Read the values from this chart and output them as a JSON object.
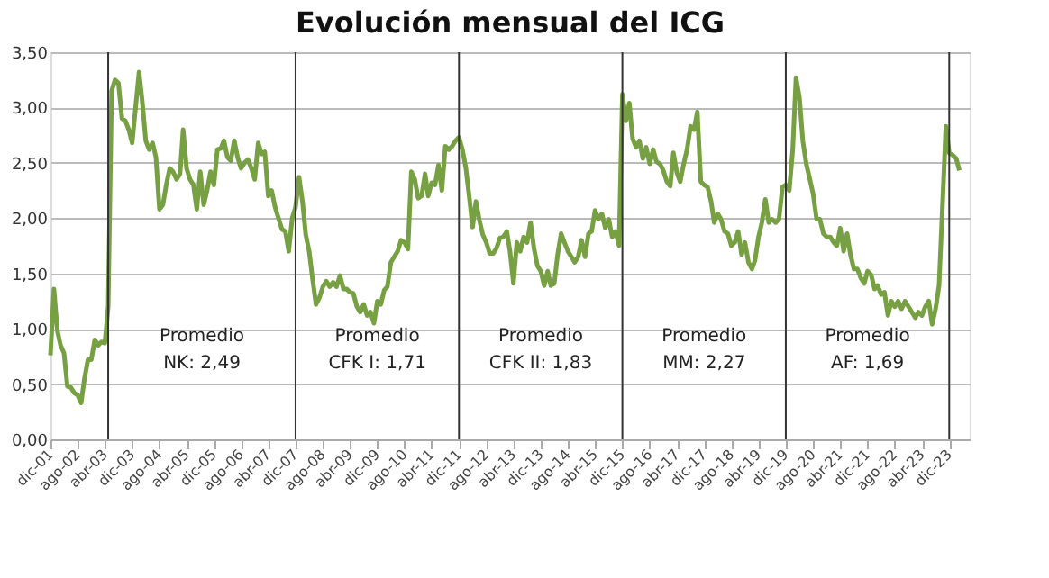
{
  "chart_data": {
    "type": "line",
    "title": "Evolución mensual del ICG",
    "x": [
      "2001-12",
      "2002-01",
      "2002-02",
      "2002-03",
      "2002-04",
      "2002-05",
      "2002-06",
      "2002-07",
      "2002-08",
      "2002-09",
      "2002-10",
      "2002-11",
      "2002-12",
      "2003-01",
      "2003-02",
      "2003-03",
      "2003-04",
      "2003-05",
      "2003-06",
      "2003-07",
      "2003-08",
      "2003-09",
      "2003-10",
      "2003-11",
      "2003-12",
      "2004-01",
      "2004-02",
      "2004-03",
      "2004-04",
      "2004-05",
      "2004-06",
      "2004-07",
      "2004-08",
      "2004-09",
      "2004-10",
      "2004-11",
      "2004-12",
      "2005-01",
      "2005-02",
      "2005-03",
      "2005-04",
      "2005-05",
      "2005-06",
      "2005-07",
      "2005-08",
      "2005-09",
      "2005-10",
      "2005-11",
      "2005-12",
      "2006-01",
      "2006-02",
      "2006-03",
      "2006-04",
      "2006-05",
      "2006-06",
      "2006-07",
      "2006-08",
      "2006-09",
      "2006-10",
      "2006-11",
      "2006-12",
      "2007-01",
      "2007-02",
      "2007-03",
      "2007-04",
      "2007-05",
      "2007-06",
      "2007-07",
      "2007-08",
      "2007-09",
      "2007-10",
      "2007-11",
      "2007-12",
      "2008-01",
      "2008-02",
      "2008-03",
      "2008-04",
      "2008-05",
      "2008-06",
      "2008-07",
      "2008-08",
      "2008-09",
      "2008-10",
      "2008-11",
      "2008-12",
      "2009-01",
      "2009-02",
      "2009-03",
      "2009-04",
      "2009-05",
      "2009-06",
      "2009-07",
      "2009-08",
      "2009-09",
      "2009-10",
      "2009-11",
      "2009-12",
      "2010-01",
      "2010-02",
      "2010-03",
      "2010-04",
      "2010-05",
      "2010-06",
      "2010-07",
      "2010-08",
      "2010-09",
      "2010-10",
      "2010-11",
      "2010-12",
      "2011-01",
      "2011-02",
      "2011-03",
      "2011-04",
      "2011-05",
      "2011-06",
      "2011-07",
      "2011-08",
      "2011-09",
      "2011-10",
      "2011-11",
      "2011-12",
      "2012-01",
      "2012-02",
      "2012-03",
      "2012-04",
      "2012-05",
      "2012-06",
      "2012-07",
      "2012-08",
      "2012-09",
      "2012-10",
      "2012-11",
      "2012-12",
      "2013-01",
      "2013-02",
      "2013-03",
      "2013-04",
      "2013-05",
      "2013-06",
      "2013-07",
      "2013-08",
      "2013-09",
      "2013-10",
      "2013-11",
      "2013-12",
      "2014-01",
      "2014-02",
      "2014-03",
      "2014-04",
      "2014-05",
      "2014-06",
      "2014-07",
      "2014-08",
      "2014-09",
      "2014-10",
      "2014-11",
      "2014-12",
      "2015-01",
      "2015-02",
      "2015-03",
      "2015-04",
      "2015-05",
      "2015-06",
      "2015-07",
      "2015-08",
      "2015-09",
      "2015-10",
      "2015-11",
      "2015-12",
      "2016-01",
      "2016-02",
      "2016-03",
      "2016-04",
      "2016-05",
      "2016-06",
      "2016-07",
      "2016-08",
      "2016-09",
      "2016-10",
      "2016-11",
      "2016-12",
      "2017-01",
      "2017-02",
      "2017-03",
      "2017-04",
      "2017-05",
      "2017-06",
      "2017-07",
      "2017-08",
      "2017-09",
      "2017-10",
      "2017-11",
      "2017-12",
      "2018-01",
      "2018-02",
      "2018-03",
      "2018-04",
      "2018-05",
      "2018-06",
      "2018-07",
      "2018-08",
      "2018-09",
      "2018-10",
      "2018-11",
      "2018-12",
      "2019-01",
      "2019-02",
      "2019-03",
      "2019-04",
      "2019-05",
      "2019-06",
      "2019-07",
      "2019-08",
      "2019-09",
      "2019-10",
      "2019-11",
      "2019-12",
      "2020-01",
      "2020-02",
      "2020-03",
      "2020-04",
      "2020-05",
      "2020-06",
      "2020-07",
      "2020-08",
      "2020-09",
      "2020-10",
      "2020-11",
      "2020-12",
      "2021-01",
      "2021-02",
      "2021-03",
      "2021-04",
      "2021-05",
      "2021-06",
      "2021-07",
      "2021-08",
      "2021-09",
      "2021-10",
      "2021-11",
      "2021-12",
      "2022-01",
      "2022-02",
      "2022-03",
      "2022-04",
      "2022-05",
      "2022-06",
      "2022-07",
      "2022-08",
      "2022-09",
      "2022-10",
      "2022-11",
      "2022-12",
      "2023-01",
      "2023-02",
      "2023-03",
      "2023-04",
      "2023-05",
      "2023-06",
      "2023-07",
      "2023-08",
      "2023-09",
      "2023-10",
      "2023-11",
      "2023-12",
      "2024-01",
      "2024-02",
      "2024-03"
    ],
    "series": [
      {
        "color": "#77a043",
        "values": [
          0.76,
          1.36,
          0.98,
          0.85,
          0.78,
          0.48,
          0.47,
          0.42,
          0.4,
          0.33,
          0.55,
          0.72,
          0.72,
          0.9,
          0.85,
          0.88,
          0.87,
          1.2,
          3.15,
          3.25,
          3.22,
          2.9,
          2.88,
          2.8,
          2.68,
          3.0,
          3.32,
          3.05,
          2.7,
          2.62,
          2.68,
          2.55,
          2.08,
          2.12,
          2.3,
          2.45,
          2.42,
          2.35,
          2.4,
          2.8,
          2.45,
          2.35,
          2.3,
          2.08,
          2.42,
          2.12,
          2.25,
          2.42,
          2.3,
          2.62,
          2.63,
          2.7,
          2.55,
          2.52,
          2.7,
          2.55,
          2.45,
          2.5,
          2.53,
          2.45,
          2.35,
          2.68,
          2.58,
          2.6,
          2.2,
          2.25,
          2.1,
          2.0,
          1.9,
          1.88,
          1.7,
          2.0,
          2.1,
          2.37,
          2.15,
          1.85,
          1.7,
          1.45,
          1.22,
          1.28,
          1.38,
          1.43,
          1.38,
          1.42,
          1.38,
          1.48,
          1.36,
          1.36,
          1.33,
          1.32,
          1.2,
          1.15,
          1.22,
          1.12,
          1.15,
          1.05,
          1.25,
          1.22,
          1.35,
          1.38,
          1.6,
          1.65,
          1.7,
          1.8,
          1.78,
          1.72,
          2.42,
          2.35,
          2.18,
          2.2,
          2.4,
          2.2,
          2.32,
          2.3,
          2.48,
          2.25,
          2.65,
          2.62,
          2.65,
          2.7,
          2.73,
          2.62,
          2.45,
          2.2,
          1.92,
          2.15,
          1.98,
          1.85,
          1.78,
          1.68,
          1.68,
          1.73,
          1.82,
          1.83,
          1.88,
          1.7,
          1.41,
          1.78,
          1.7,
          1.83,
          1.78,
          1.96,
          1.73,
          1.57,
          1.52,
          1.39,
          1.52,
          1.39,
          1.41,
          1.67,
          1.86,
          1.78,
          1.7,
          1.65,
          1.6,
          1.65,
          1.8,
          1.65,
          1.86,
          1.88,
          2.07,
          1.99,
          2.04,
          1.91,
          1.99,
          1.83,
          1.88,
          1.75,
          3.12,
          2.88,
          3.04,
          2.72,
          2.64,
          2.7,
          2.54,
          2.64,
          2.49,
          2.62,
          2.51,
          2.49,
          2.43,
          2.33,
          2.29,
          2.59,
          2.41,
          2.33,
          2.49,
          2.62,
          2.83,
          2.8,
          2.96,
          2.33,
          2.3,
          2.28,
          2.15,
          1.96,
          2.04,
          1.99,
          1.88,
          1.86,
          1.75,
          1.78,
          1.88,
          1.67,
          1.78,
          1.6,
          1.54,
          1.62,
          1.83,
          1.96,
          2.17,
          1.96,
          1.99,
          1.96,
          1.99,
          2.28,
          2.3,
          2.25,
          2.62,
          3.27,
          3.09,
          2.7,
          2.49,
          2.36,
          2.22,
          1.99,
          1.99,
          1.86,
          1.83,
          1.83,
          1.78,
          1.75,
          1.91,
          1.7,
          1.86,
          1.67,
          1.54,
          1.54,
          1.46,
          1.41,
          1.52,
          1.49,
          1.36,
          1.39,
          1.31,
          1.33,
          1.12,
          1.25,
          1.2,
          1.25,
          1.18,
          1.25,
          1.2,
          1.15,
          1.1,
          1.15,
          1.12,
          1.2,
          1.25,
          1.04,
          1.18,
          1.39,
          2.09,
          2.83,
          2.59,
          2.57,
          2.54,
          2.43
        ]
      }
    ],
    "xlim": [
      "2001-12",
      "2024-06"
    ],
    "xticks": [
      {
        "value": "2001-12",
        "label": "dic-01"
      },
      {
        "value": "2002-08",
        "label": "ago-02"
      },
      {
        "value": "2003-04",
        "label": "abr-03"
      },
      {
        "value": "2003-12",
        "label": "dic-03"
      },
      {
        "value": "2004-08",
        "label": "ago-04"
      },
      {
        "value": "2005-04",
        "label": "abr-05"
      },
      {
        "value": "2005-12",
        "label": "dic-05"
      },
      {
        "value": "2006-08",
        "label": "ago-06"
      },
      {
        "value": "2007-04",
        "label": "abr-07"
      },
      {
        "value": "2007-12",
        "label": "dic-07"
      },
      {
        "value": "2008-08",
        "label": "ago-08"
      },
      {
        "value": "2009-04",
        "label": "abr-09"
      },
      {
        "value": "2009-12",
        "label": "dic-09"
      },
      {
        "value": "2010-08",
        "label": "ago-10"
      },
      {
        "value": "2011-04",
        "label": "abr-11"
      },
      {
        "value": "2011-12",
        "label": "dic-11"
      },
      {
        "value": "2012-08",
        "label": "ago-12"
      },
      {
        "value": "2013-04",
        "label": "abr-13"
      },
      {
        "value": "2013-12",
        "label": "dic-13"
      },
      {
        "value": "2014-08",
        "label": "ago-14"
      },
      {
        "value": "2015-04",
        "label": "abr-15"
      },
      {
        "value": "2015-12",
        "label": "dic-15"
      },
      {
        "value": "2016-08",
        "label": "ago-16"
      },
      {
        "value": "2017-04",
        "label": "abr-17"
      },
      {
        "value": "2017-12",
        "label": "dic-17"
      },
      {
        "value": "2018-08",
        "label": "ago-18"
      },
      {
        "value": "2019-04",
        "label": "abr-19"
      },
      {
        "value": "2019-12",
        "label": "dic-19"
      },
      {
        "value": "2020-08",
        "label": "ago-20"
      },
      {
        "value": "2021-04",
        "label": "abr-21"
      },
      {
        "value": "2021-12",
        "label": "dic-21"
      },
      {
        "value": "2022-08",
        "label": "ago-22"
      },
      {
        "value": "2023-04",
        "label": "abr-23"
      },
      {
        "value": "2023-12",
        "label": "dic-23"
      }
    ],
    "ylim": [
      0,
      3.5
    ],
    "yticks": [
      {
        "value": 0,
        "label": "0,00"
      },
      {
        "value": 0.5,
        "label": "0,50"
      },
      {
        "value": 1,
        "label": "1,00"
      },
      {
        "value": 1.5,
        "label": "1,50"
      },
      {
        "value": 2,
        "label": "2,00"
      },
      {
        "value": 2.5,
        "label": "2,50"
      },
      {
        "value": 3,
        "label": "3,00"
      },
      {
        "value": 3.5,
        "label": "3,50"
      }
    ],
    "grid": "y",
    "legend": false,
    "ref_lines": [
      {
        "axis": "x",
        "value": "2003-05",
        "color": "#333333"
      },
      {
        "axis": "x",
        "value": "2007-12",
        "color": "#333333"
      },
      {
        "axis": "x",
        "value": "2011-12",
        "color": "#333333"
      },
      {
        "axis": "x",
        "value": "2015-12",
        "color": "#333333"
      },
      {
        "axis": "x",
        "value": "2019-12",
        "color": "#333333"
      },
      {
        "axis": "x",
        "value": "2023-12",
        "color": "#333333"
      }
    ],
    "annotations": [
      "Promedio\nNK: 2,49",
      "Promedio\nCFK I: 1,71",
      "Promedio\nCFK II: 1,83",
      "Promedio\nMM: 2,27",
      "Promedio\nAF: 1,69"
    ]
  }
}
